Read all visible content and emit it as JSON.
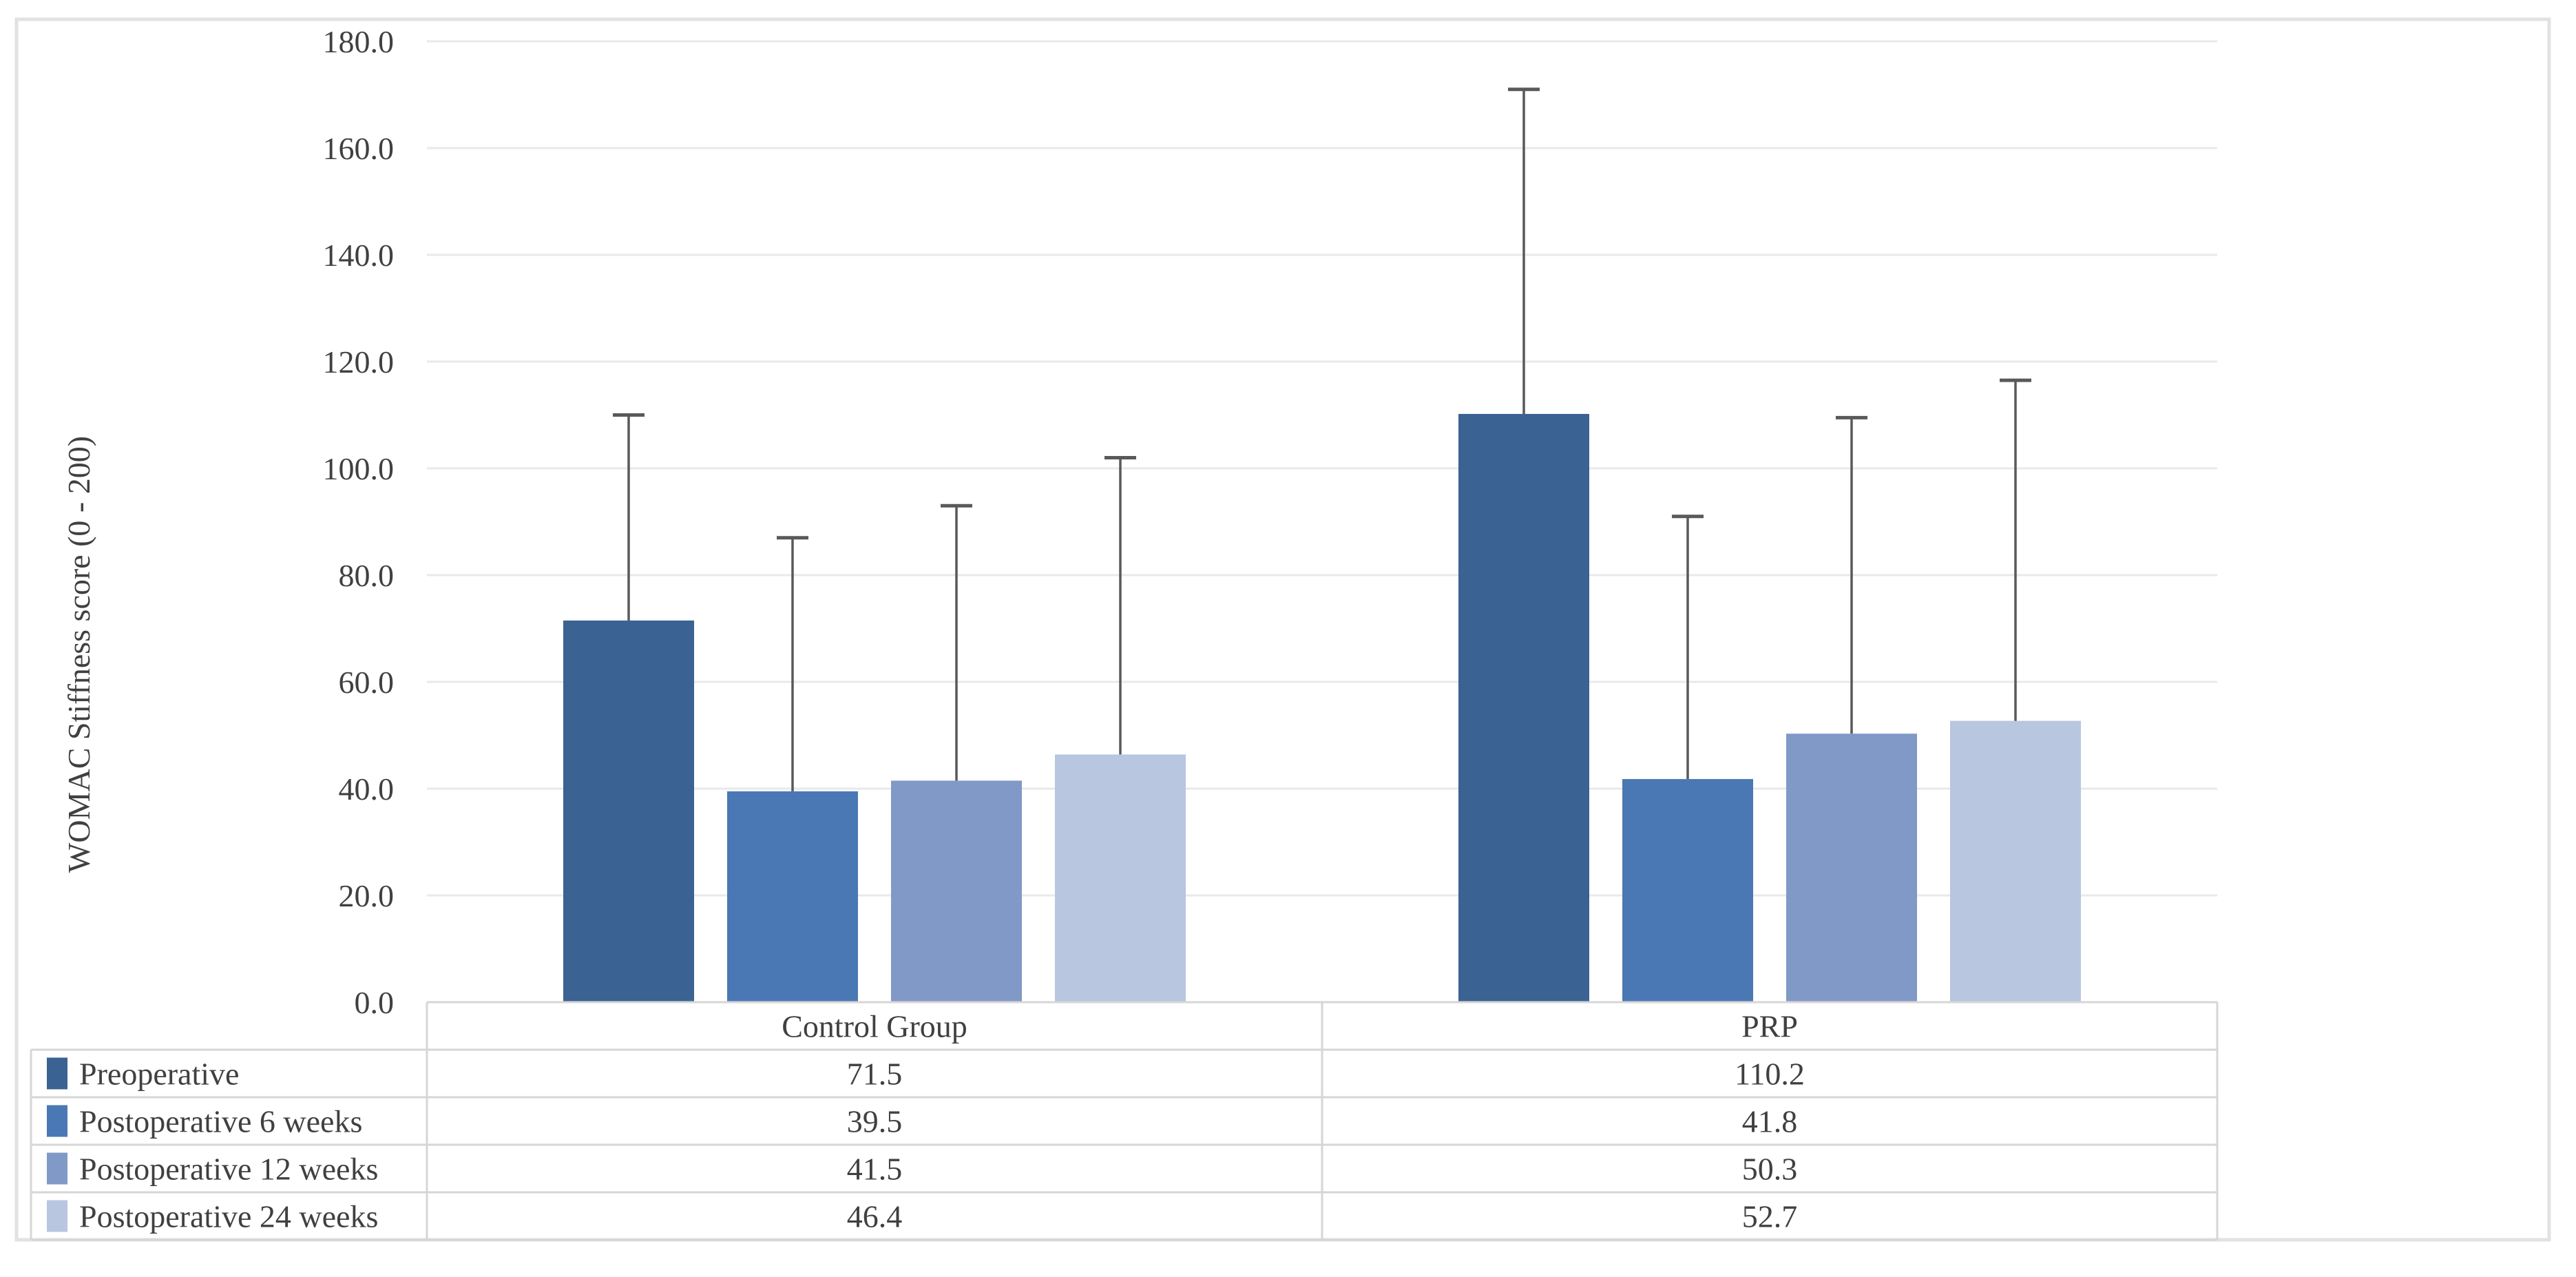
{
  "chart_data": {
    "type": "bar",
    "title": "",
    "ylabel": "WOMAC Stiffness score (0 - 200)",
    "xlabel": "",
    "categories": [
      "Control Group",
      "PRP"
    ],
    "series": [
      {
        "name": "Preoperative",
        "color": "#3a6292",
        "values": [
          71.5,
          110.2
        ],
        "error_plus": [
          38.5,
          60.8
        ]
      },
      {
        "name": "Postoperative 6 weeks",
        "color": "#4a78b4",
        "values": [
          39.5,
          41.8
        ],
        "error_plus": [
          47.5,
          49.2
        ]
      },
      {
        "name": "Postoperative 12 weeks",
        "color": "#8199c7",
        "values": [
          41.5,
          50.3
        ],
        "error_plus": [
          51.5,
          59.2
        ]
      },
      {
        "name": "Postoperative 24 weeks",
        "color": "#b9c6e0",
        "values": [
          46.4,
          52.7
        ],
        "error_plus": [
          55.6,
          63.8
        ]
      }
    ],
    "ylim": [
      0,
      180
    ],
    "ytick_step": 20,
    "ytick_decimals": 1,
    "value_decimals": 1,
    "grid": true,
    "legend_position": "data-table-left",
    "colors": {
      "error_bar": "#595959",
      "gridline": "#e9e9e9",
      "table_border": "#d6d6d6",
      "outer_border": "#e2e2e2",
      "text": "#404040",
      "background": "#ffffff"
    }
  }
}
